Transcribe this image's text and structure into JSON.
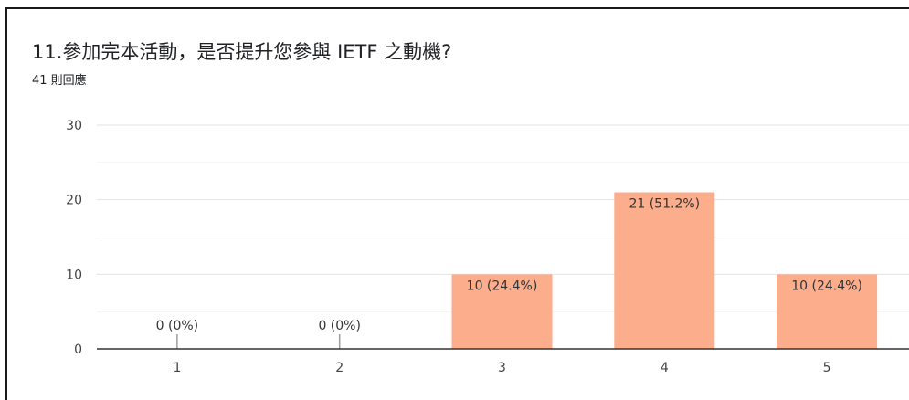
{
  "title": "11.參加完本活動，是否提升您參與 IETF 之動機?",
  "subtitle": "41 則回應",
  "chart_data": {
    "type": "bar",
    "categories": [
      "1",
      "2",
      "3",
      "4",
      "5"
    ],
    "values": [
      0,
      0,
      10,
      21,
      10
    ],
    "data_labels": [
      "0 (0%)",
      "0 (0%)",
      "10 (24.4%)",
      "21 (51.2%)",
      "10 (24.4%)"
    ],
    "y_ticks": [
      "0",
      "10",
      "20",
      "30"
    ],
    "ylim": [
      0,
      30
    ],
    "grid": true,
    "bar_color": "#fcad8c"
  }
}
